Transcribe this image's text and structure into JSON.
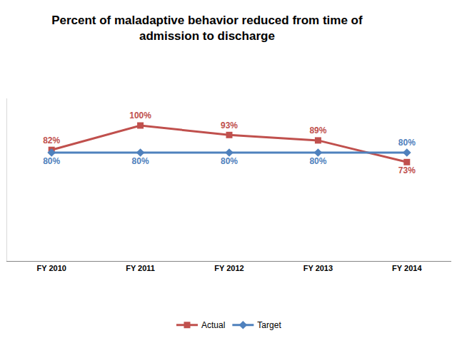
{
  "chart_data": {
    "type": "line",
    "title": "Percent of maladaptive behavior reduced from time of admission to discharge",
    "categories": [
      "FY 2010",
      "FY 2011",
      "FY 2012",
      "FY 2013",
      "FY 2014"
    ],
    "series": [
      {
        "name": "Actual",
        "color": "#C0504D",
        "marker": "square",
        "values": [
          82,
          100,
          93,
          89,
          73
        ],
        "value_labels": [
          "82%",
          "100%",
          "93%",
          "89%",
          "73%"
        ]
      },
      {
        "name": "Target",
        "color": "#4F81BD",
        "marker": "diamond",
        "values": [
          80,
          80,
          80,
          80,
          80
        ],
        "value_labels": [
          "80%",
          "80%",
          "80%",
          "80%",
          "80%"
        ]
      }
    ],
    "ylim": [
      0,
      120
    ],
    "grid": false,
    "legend": "bottom",
    "data_labels": true,
    "tick_labels": "x"
  }
}
